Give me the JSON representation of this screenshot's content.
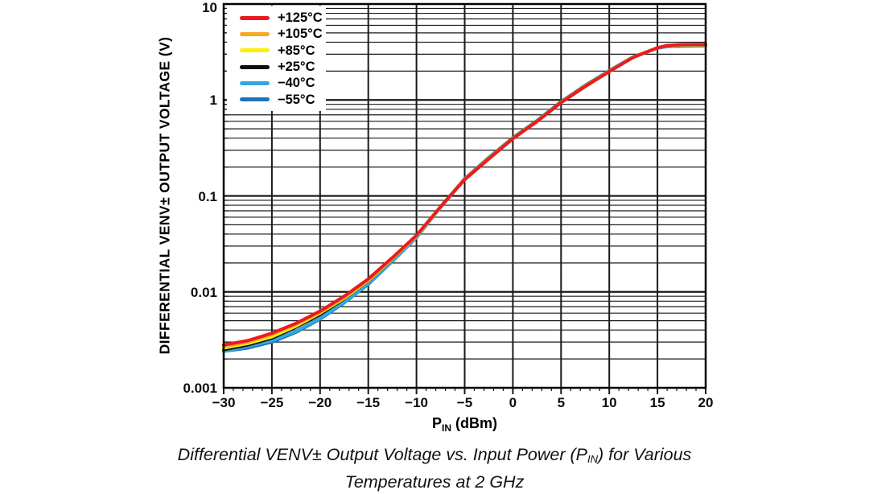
{
  "chart_data": {
    "type": "line",
    "title": "",
    "ylabel": "DIFFERENTIAL VENV± OUTPUT VOLTAGE (V)",
    "xlabel": {
      "pre": "P",
      "sub": "IN",
      "post": " (dBm)"
    },
    "x_axis": {
      "min": -30,
      "max": 20,
      "major_step": 5,
      "minor_step": 1,
      "tick_values": [
        -30,
        -25,
        -20,
        -15,
        -10,
        -5,
        0,
        5,
        10,
        15,
        20
      ],
      "tick_labels": [
        "−30",
        "−25",
        "−20",
        "−15",
        "−10",
        "−5",
        "0",
        "5",
        "10",
        "15",
        "20"
      ]
    },
    "y_axis": {
      "scale": "log",
      "min": 0.001,
      "max": 10,
      "tick_values": [
        10,
        1,
        0.1,
        0.01,
        0.001
      ],
      "tick_labels": [
        "10",
        "1",
        "0.1",
        "0.01",
        "0.001"
      ]
    },
    "grid": true,
    "legend_position": "top-left",
    "x": [
      -30,
      -27.5,
      -25,
      -22.5,
      -20,
      -17.5,
      -15,
      -12.5,
      -10,
      -7.5,
      -5,
      -2.5,
      0,
      2.5,
      5,
      7.5,
      10,
      12.5,
      15,
      16,
      17.5,
      20
    ],
    "series": [
      {
        "name": "+125°C",
        "color": "#ea1b20",
        "values": [
          0.0028,
          0.0031,
          0.0037,
          0.0047,
          0.0063,
          0.009,
          0.0136,
          0.0227,
          0.0388,
          0.077,
          0.148,
          0.243,
          0.395,
          0.595,
          0.94,
          1.38,
          1.98,
          2.78,
          3.5,
          3.7,
          3.78,
          3.8
        ]
      },
      {
        "name": "+105°C",
        "color": "#f6a81f",
        "values": [
          0.0027,
          0.003,
          0.0036,
          0.0046,
          0.0061,
          0.0088,
          0.0133,
          0.0223,
          0.0384,
          0.0766,
          0.148,
          0.244,
          0.396,
          0.598,
          0.94,
          1.39,
          1.99,
          2.79,
          3.5,
          3.69,
          3.76,
          3.78
        ]
      },
      {
        "name": "+85°C",
        "color": "#fdee10",
        "values": [
          0.0026,
          0.0029,
          0.0034,
          0.0044,
          0.006,
          0.0086,
          0.0131,
          0.0221,
          0.0381,
          0.0764,
          0.149,
          0.246,
          0.398,
          0.6,
          0.945,
          1.39,
          1.99,
          2.79,
          3.5,
          3.68,
          3.74,
          3.76
        ]
      },
      {
        "name": "+25°C",
        "color": "#0e0e0e",
        "values": [
          0.0025,
          0.0028,
          0.0033,
          0.0043,
          0.0058,
          0.0085,
          0.013,
          0.022,
          0.038,
          0.077,
          0.15,
          0.248,
          0.4,
          0.603,
          0.95,
          1.4,
          2.0,
          2.8,
          3.5,
          3.67,
          3.72,
          3.74
        ]
      },
      {
        "name": "−40°C",
        "color": "#33a8e0",
        "values": [
          0.0024,
          0.0027,
          0.0031,
          0.0039,
          0.0053,
          0.0078,
          0.0122,
          0.021,
          0.037,
          0.076,
          0.151,
          0.25,
          0.403,
          0.607,
          0.96,
          1.41,
          2.01,
          2.81,
          3.48,
          3.62,
          3.66,
          3.68
        ]
      },
      {
        "name": "−55°C",
        "color": "#1d73b9",
        "values": [
          0.0024,
          0.0026,
          0.003,
          0.0038,
          0.0052,
          0.0077,
          0.012,
          0.0208,
          0.0368,
          0.0758,
          0.151,
          0.251,
          0.404,
          0.609,
          0.96,
          1.42,
          2.02,
          2.82,
          3.47,
          3.6,
          3.64,
          3.66
        ]
      }
    ],
    "colors": {
      "grid": "#1a1a1a",
      "axis": "#000000",
      "background": "#ffffff"
    }
  },
  "caption": {
    "line1_pre": "Differential VENV± Output Voltage vs. Input Power (P",
    "line1_sub": "IN",
    "line1_post": ") for Various",
    "line2": "Temperatures at 2 GHz"
  }
}
